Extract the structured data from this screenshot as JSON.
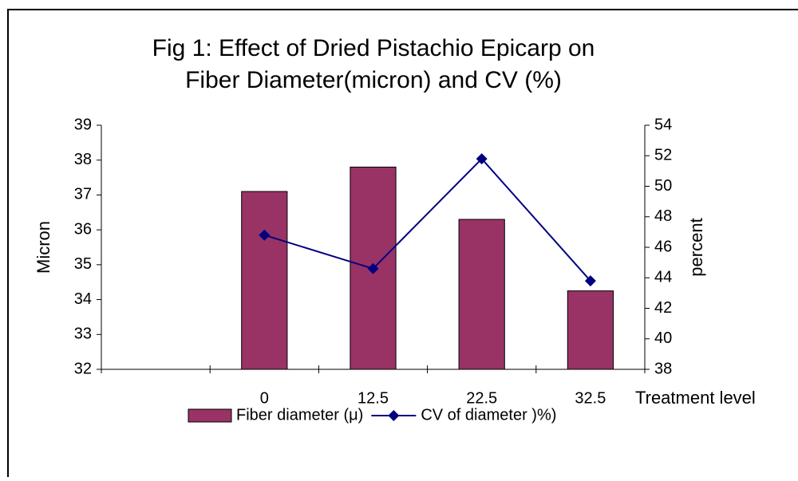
{
  "chart_data": {
    "type": "bar",
    "title": [
      "Fig 1: Effect of Dried Pistachio Epicarp on",
      "Fiber Diameter(micron) and CV (%)"
    ],
    "y_label": "Micron",
    "y2_label": "percent",
    "x_label": "Treatment level",
    "categories": [
      null,
      "0",
      "12.5",
      "22.5",
      "32.5"
    ],
    "series": [
      {
        "name": "Fiber diameter (μ)",
        "type": "bar",
        "color": "#993366",
        "values": [
          null,
          37.1,
          37.8,
          36.3,
          34.25
        ]
      },
      {
        "name": "CV of  diameter )%)",
        "type": "line",
        "axis": "y2",
        "color": "#000080",
        "values": [
          null,
          46.8,
          44.6,
          51.8,
          43.8
        ]
      }
    ],
    "ylim": [
      32,
      39
    ],
    "yticks": [
      32,
      33,
      34,
      35,
      36,
      37,
      38,
      39
    ],
    "y2lim": [
      38,
      54
    ],
    "y2ticks": [
      38,
      40,
      42,
      44,
      46,
      48,
      50,
      52,
      54
    ],
    "grid": false,
    "legend": "bottom"
  }
}
